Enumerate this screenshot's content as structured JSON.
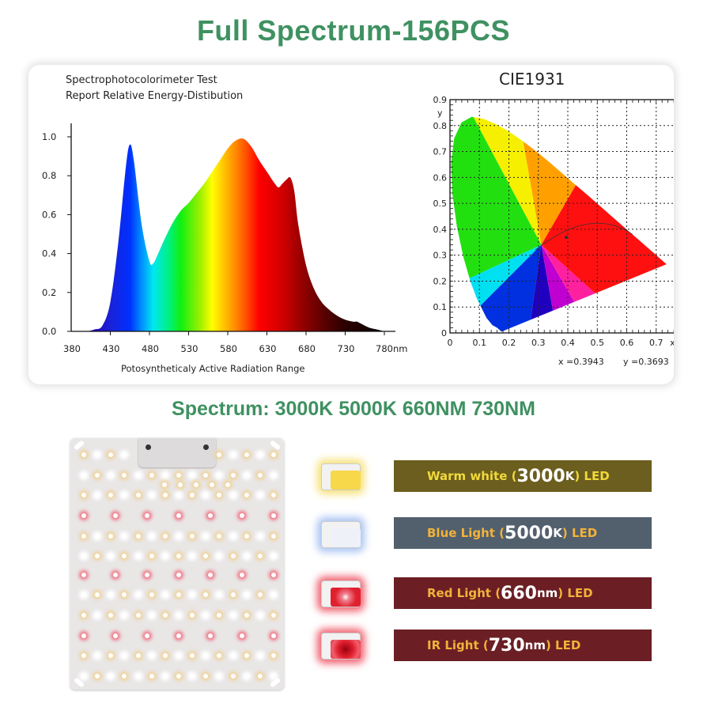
{
  "header": {
    "title": "Full Spectrum-156PCS",
    "color": "#3f9161"
  },
  "spectrum_panel": {
    "title_line1": "Spectrophotocolorimeter Test",
    "title_line2": "Report Relative Energy-Distibution"
  },
  "cie_panel": {
    "title": "CIE1931",
    "x_value": "x =0.3943",
    "y_value": "y =0.3693"
  },
  "chart_data": [
    {
      "type": "area",
      "title": "Spectrophotocolorimeter Test Report Relative Energy-Distibution",
      "xlabel": "Potosyntheticaly Active Radiation Range",
      "ylabel": "",
      "x_ticks": [
        "380",
        "430",
        "480",
        "530",
        "580",
        "630",
        "680",
        "730",
        "780nm"
      ],
      "y_ticks": [
        "0.0",
        "0.2",
        "0.4",
        "0.6",
        "0.8",
        "1.0"
      ],
      "xlim": [
        380,
        780
      ],
      "ylim": [
        0,
        1.05
      ],
      "x": [
        390,
        400,
        410,
        420,
        430,
        440,
        450,
        455,
        460,
        470,
        480,
        485,
        490,
        500,
        510,
        520,
        530,
        540,
        550,
        560,
        570,
        580,
        590,
        600,
        610,
        620,
        630,
        640,
        645,
        650,
        655,
        660,
        665,
        670,
        680,
        690,
        700,
        710,
        720,
        730,
        740,
        745,
        750,
        760,
        770,
        780
      ],
      "values": [
        0.0,
        0.0,
        0.01,
        0.03,
        0.15,
        0.45,
        0.85,
        0.96,
        0.88,
        0.55,
        0.36,
        0.35,
        0.39,
        0.48,
        0.56,
        0.62,
        0.66,
        0.71,
        0.76,
        0.82,
        0.88,
        0.94,
        0.98,
        0.99,
        0.95,
        0.88,
        0.82,
        0.76,
        0.74,
        0.76,
        0.78,
        0.79,
        0.72,
        0.55,
        0.34,
        0.22,
        0.15,
        0.11,
        0.08,
        0.06,
        0.05,
        0.05,
        0.04,
        0.02,
        0.01,
        0.0
      ],
      "grid": false,
      "legend": "none"
    },
    {
      "type": "scatter",
      "title": "CIE1931",
      "xlabel": "x",
      "ylabel": "y",
      "x_ticks": [
        "0",
        "0.1",
        "0.2",
        "0.3",
        "0.4",
        "0.5",
        "0.6",
        "0.7",
        "0.8"
      ],
      "y_ticks": [
        "0",
        "0.1",
        "0.2",
        "0.3",
        "0.4",
        "0.5",
        "0.6",
        "0.7",
        "0.8",
        "0.9"
      ],
      "xlim": [
        0,
        0.8
      ],
      "ylim": [
        0,
        0.9
      ],
      "grid": true,
      "points": [
        {
          "x": 0.3943,
          "y": 0.3693
        }
      ],
      "annotations": [
        "x =0.3943",
        "y =0.3693"
      ]
    }
  ],
  "spectrum_subtitle": "Spectrum: 3000K 5000K 660NM 730NM",
  "led_types": [
    {
      "prefix": "Warm white (",
      "value": "3000",
      "unit": "K",
      "suffix": ") LED",
      "bar_color": "#6b5e1e",
      "text_color": "#f2d93a",
      "chip_color": "#f7d84a",
      "glow": "#f7e27a"
    },
    {
      "prefix": "Blue Light (",
      "value": "5000",
      "unit": "K",
      "suffix": ") LED",
      "bar_color": "#52606e",
      "text_color": "#f2b23a",
      "chip_color": "#eef2f8",
      "glow": "#a9c3f2"
    },
    {
      "prefix": "Red Light (",
      "value": "660",
      "unit": "nm",
      "suffix": ") LED",
      "bar_color": "#6b1f25",
      "text_color": "#f2b23a",
      "chip_color": "#e0202e",
      "glow": "#f0606e"
    },
    {
      "prefix": "IR Light (",
      "value": "730",
      "unit": "nm",
      "suffix": ") LED",
      "bar_color": "#6b1f25",
      "text_color": "#f2b23a",
      "chip_color": "#e4303e",
      "glow": "#f0606e"
    }
  ]
}
